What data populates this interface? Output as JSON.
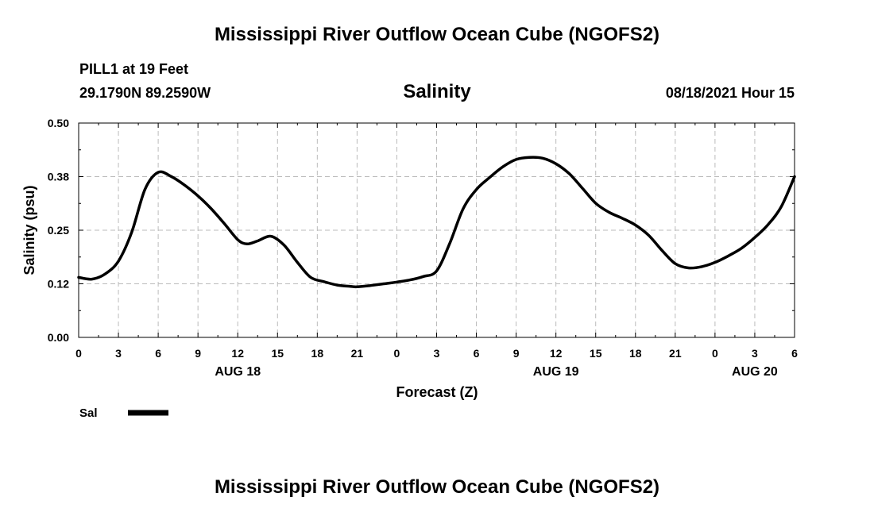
{
  "header": {
    "title": "Mississippi River Outflow Ocean Cube (NGOFS2)",
    "station": "PILL1 at 19 Feet",
    "coords": "29.1790N  89.2590W",
    "timestamp": "08/18/2021 Hour 15"
  },
  "footer": {
    "title": "Mississippi River Outflow Ocean Cube (NGOFS2)"
  },
  "legend": {
    "label": "Sal"
  },
  "chart_data": {
    "type": "line",
    "title": "Salinity",
    "xlabel": "Forecast (Z)",
    "ylabel": "Salinity (psu)",
    "xlim": [
      0,
      54
    ],
    "ylim": [
      0.0,
      0.5
    ],
    "grid": true,
    "yticks": [
      0.0,
      0.125,
      0.25,
      0.375,
      0.5
    ],
    "ytick_labels": [
      "0.00",
      "0.12",
      "0.25",
      "0.38",
      "0.50"
    ],
    "xticks": [
      0,
      3,
      6,
      9,
      12,
      15,
      18,
      21,
      24,
      27,
      30,
      33,
      36,
      39,
      42,
      45,
      48,
      51,
      54
    ],
    "xtick_labels": [
      "0",
      "3",
      "6",
      "9",
      "12",
      "15",
      "18",
      "21",
      "0",
      "3",
      "6",
      "9",
      "12",
      "15",
      "18",
      "21",
      "0",
      "3",
      "6"
    ],
    "date_labels": [
      {
        "x": 12,
        "label": "AUG 18"
      },
      {
        "x": 36,
        "label": "AUG 19"
      },
      {
        "x": 51,
        "label": "AUG 20"
      }
    ],
    "series": [
      {
        "name": "Sal",
        "color": "#000000",
        "x": [
          0,
          1,
          2,
          3,
          4,
          5,
          6,
          7,
          8,
          9,
          10,
          11,
          12,
          12.7,
          13.5,
          14.5,
          15.5,
          16.5,
          17.5,
          18.5,
          19.5,
          20.5,
          21,
          22,
          23,
          24,
          25,
          26,
          27,
          28,
          29,
          30,
          31,
          32,
          33,
          34,
          35,
          36,
          37,
          38,
          39,
          40,
          41,
          42,
          43,
          44,
          45,
          46,
          47,
          48,
          49,
          50,
          51,
          52,
          53,
          54
        ],
        "values": [
          0.14,
          0.136,
          0.148,
          0.178,
          0.245,
          0.345,
          0.385,
          0.375,
          0.355,
          0.33,
          0.3,
          0.265,
          0.228,
          0.218,
          0.225,
          0.236,
          0.215,
          0.175,
          0.14,
          0.13,
          0.122,
          0.119,
          0.118,
          0.121,
          0.125,
          0.129,
          0.134,
          0.142,
          0.155,
          0.22,
          0.3,
          0.345,
          0.373,
          0.398,
          0.415,
          0.42,
          0.418,
          0.405,
          0.382,
          0.348,
          0.313,
          0.292,
          0.278,
          0.262,
          0.238,
          0.203,
          0.172,
          0.162,
          0.165,
          0.175,
          0.19,
          0.208,
          0.233,
          0.263,
          0.305,
          0.375
        ]
      }
    ]
  }
}
